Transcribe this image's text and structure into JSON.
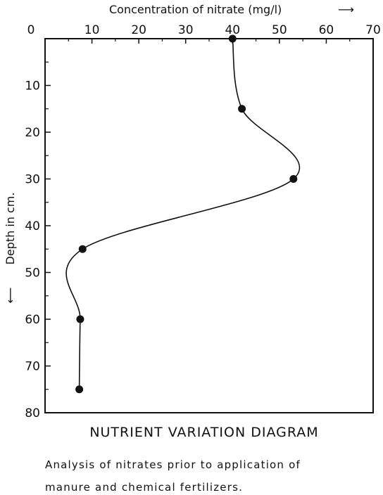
{
  "chart_data": {
    "type": "line",
    "title": "NUTRIENT VARIATION DIAGRAM",
    "caption_lines": [
      "Analysis of nitrates prior to application of",
      "manure and chemical fertilizers."
    ],
    "xlabel": "Concentration of nitrate (mg/l)",
    "ylabel": "Depth in cm.",
    "x_axis_position": "top",
    "y_inverted": true,
    "xlim": [
      0,
      70
    ],
    "ylim": [
      0,
      80
    ],
    "x_ticks": [
      "0",
      "10",
      "20",
      "30",
      "40",
      "50",
      "60",
      "70"
    ],
    "y_ticks": [
      "10",
      "20",
      "30",
      "40",
      "50",
      "60",
      "70",
      "80"
    ],
    "grid": false,
    "series": [
      {
        "points": [
          {
            "x": 40,
            "y": 0
          },
          {
            "x": 42,
            "y": 15
          },
          {
            "x": 53,
            "y": 30
          },
          {
            "x": 8,
            "y": 45
          },
          {
            "x": 7.5,
            "y": 60
          },
          {
            "x": 7.3,
            "y": 75
          }
        ]
      }
    ]
  }
}
